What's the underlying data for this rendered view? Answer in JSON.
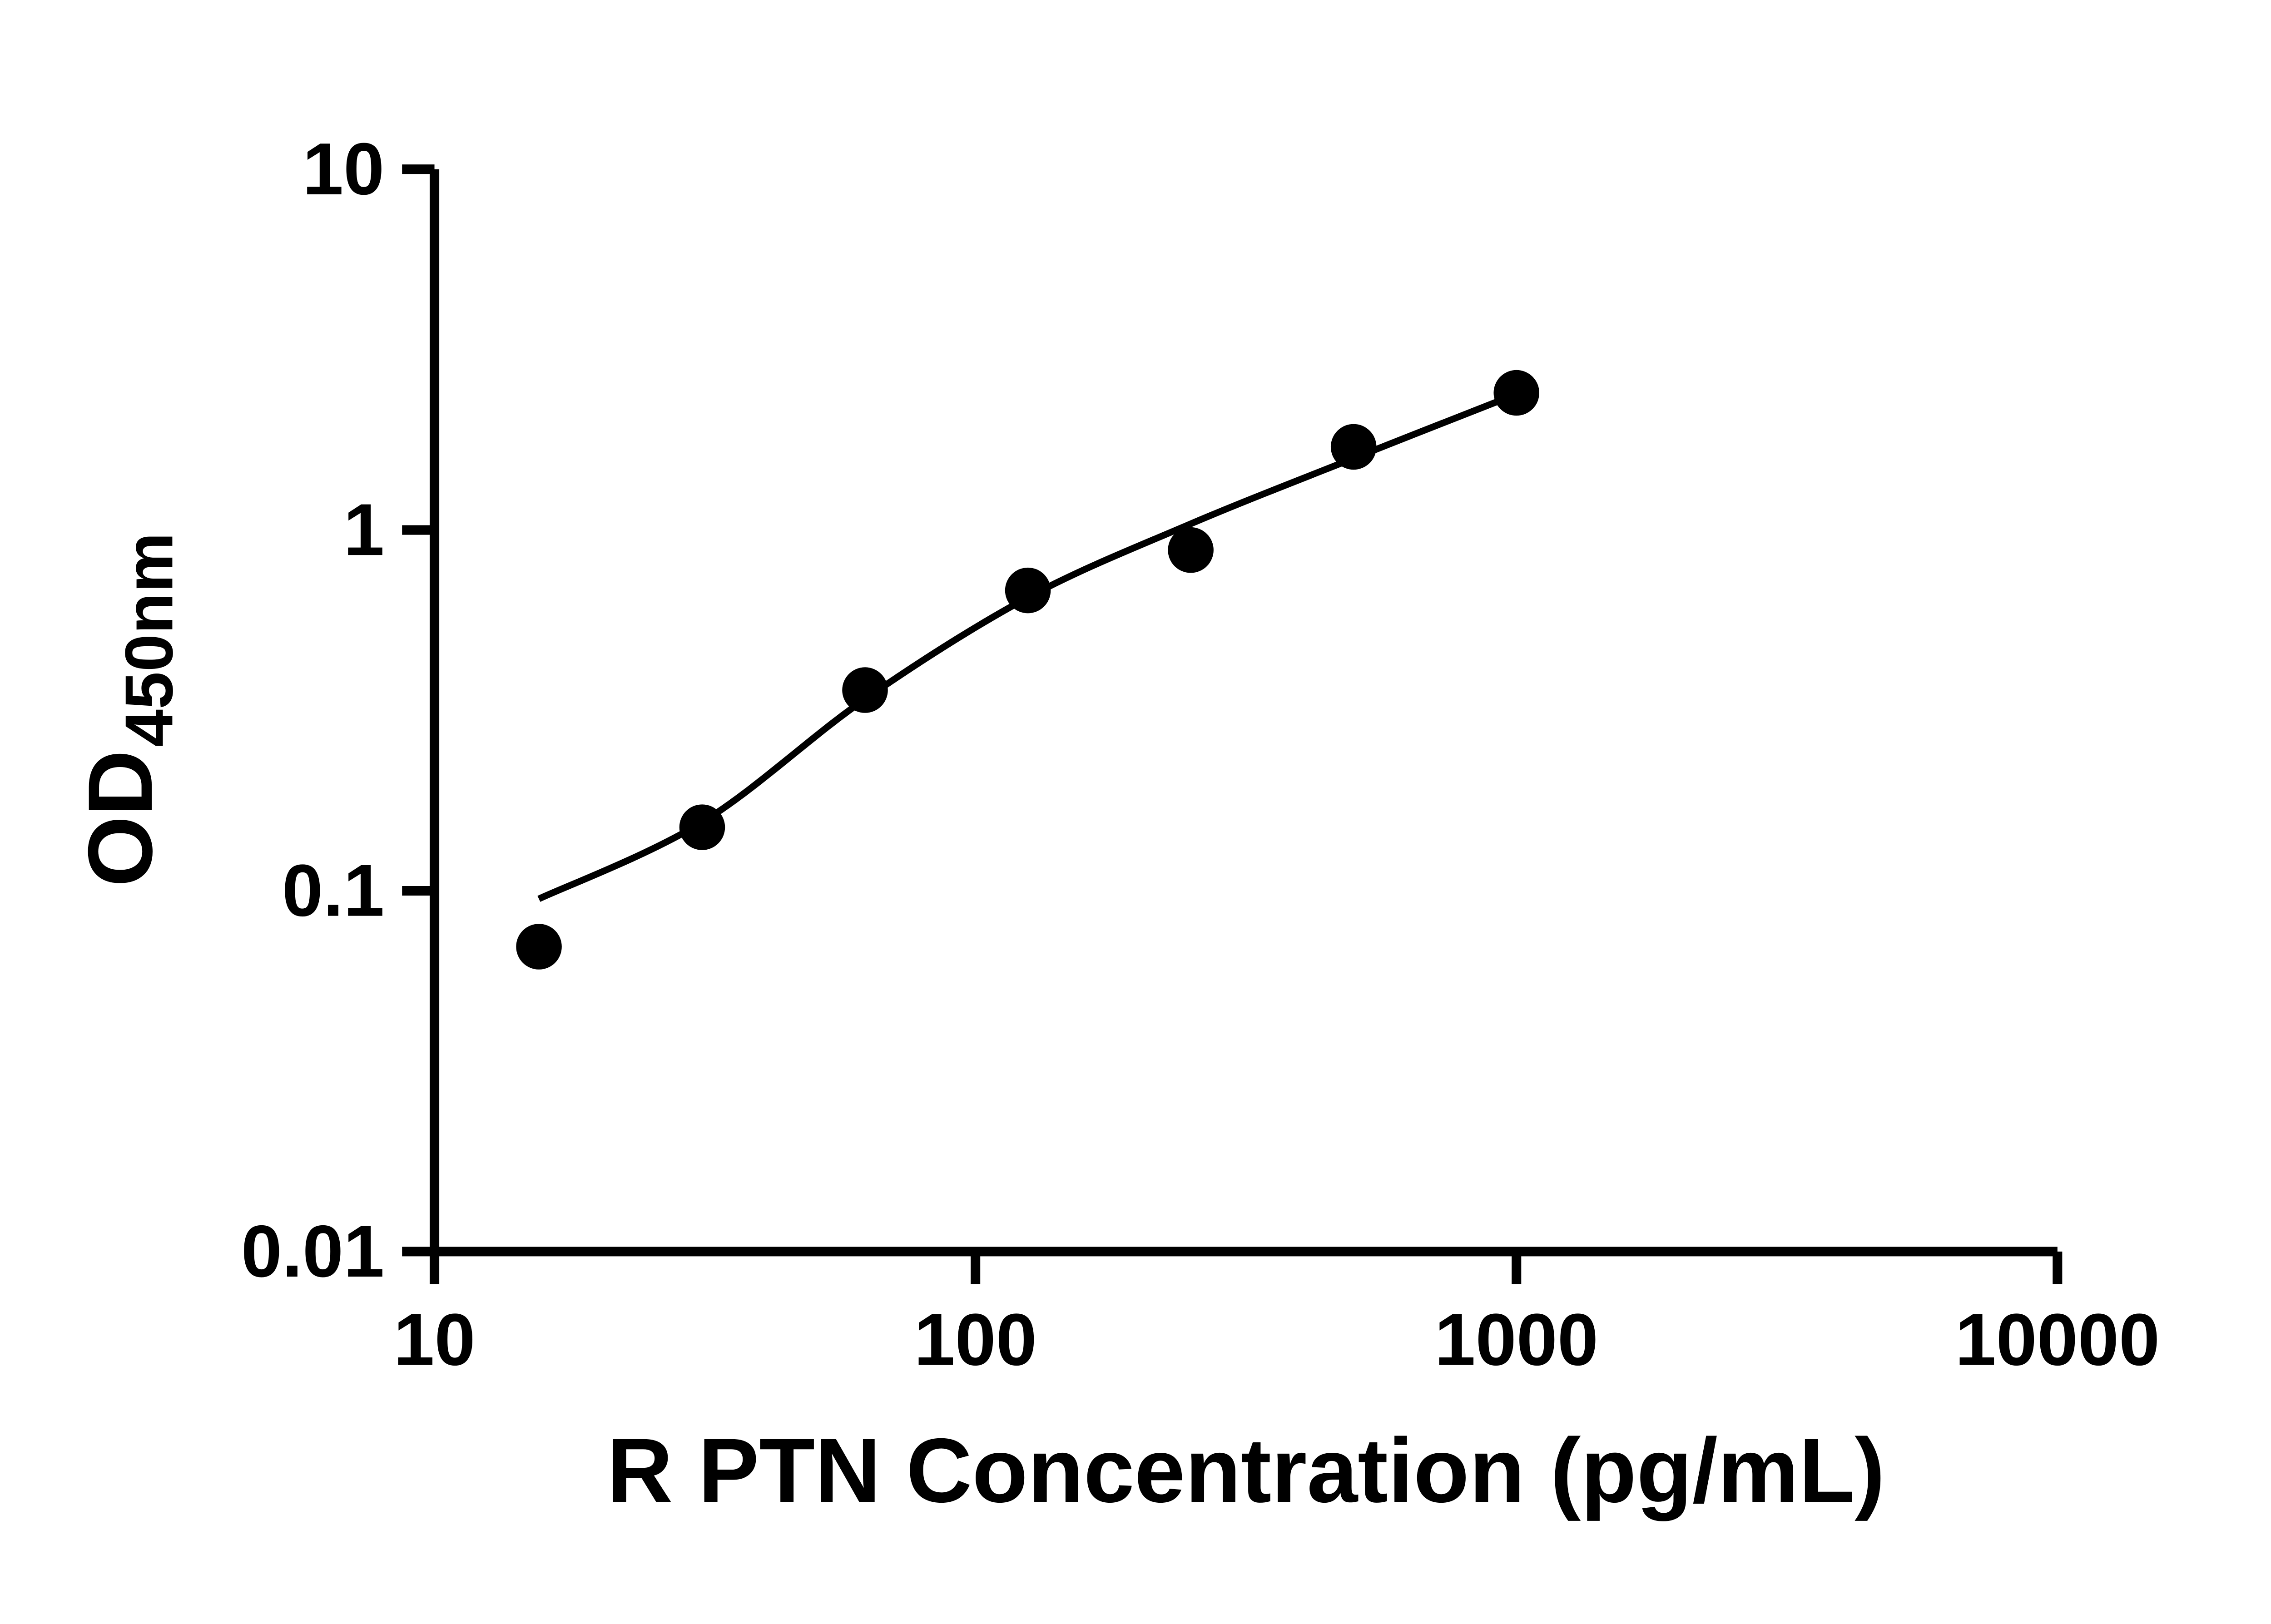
{
  "figure": {
    "background": "#ffffff"
  },
  "chart_data": {
    "type": "scatter",
    "xlabel": "R PTN Concentration (pg/mL)",
    "ylabel": "OD",
    "ylabel_subscript": "450nm",
    "x_scale": "log",
    "y_scale": "log",
    "xlim": [
      10,
      10000
    ],
    "ylim": [
      0.01,
      10
    ],
    "x_ticks": [
      10,
      100,
      1000,
      10000
    ],
    "x_tick_labels": [
      "10",
      "100",
      "1000",
      "10000"
    ],
    "y_ticks": [
      0.01,
      0.1,
      1,
      10
    ],
    "y_tick_labels": [
      "0.01",
      "0.1",
      "1",
      "10"
    ],
    "grid": false,
    "legend": false,
    "colors": {
      "ink": "#000000",
      "background": "#ffffff"
    },
    "series": [
      {
        "name": "fit-curve",
        "type": "line",
        "x": [
          15.6,
          31.25,
          62.5,
          125,
          250,
          500,
          1000
        ],
        "y": [
          0.095,
          0.155,
          0.34,
          0.65,
          1.04,
          1.58,
          2.38
        ]
      },
      {
        "name": "standard-points",
        "type": "scatter",
        "marker": "circle",
        "x": [
          15.6,
          31.25,
          62.5,
          125,
          250,
          500,
          1000
        ],
        "y": [
          0.07,
          0.15,
          0.36,
          0.68,
          0.88,
          1.7,
          2.4
        ]
      }
    ]
  }
}
